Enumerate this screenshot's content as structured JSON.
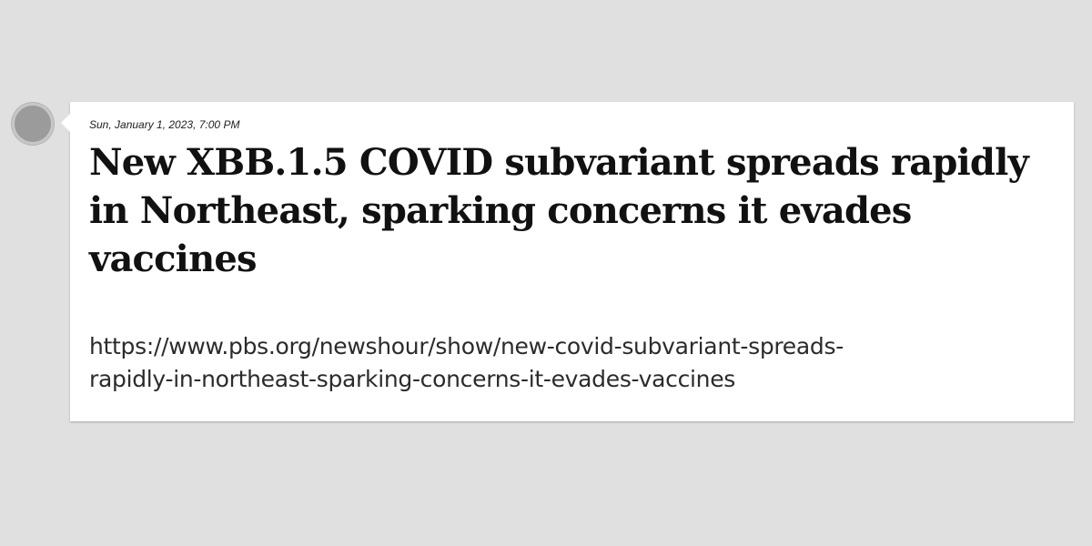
{
  "post": {
    "date": "Sun, January 1, 2023, 7:00 PM",
    "title": "New XBB.1.5 COVID subvariant spreads rapidly in Northeast, sparking concerns it evades vaccines",
    "url_line1": "https://www.pbs.org/newshour/show/new-covid-subvariant-spreads-",
    "url_line2": "rapidly-in-northeast-sparking-concerns-it-evades-vaccines"
  },
  "colors": {
    "background": "#e0e0e0",
    "card": "#ffffff",
    "dot": "#9b9b9b"
  }
}
